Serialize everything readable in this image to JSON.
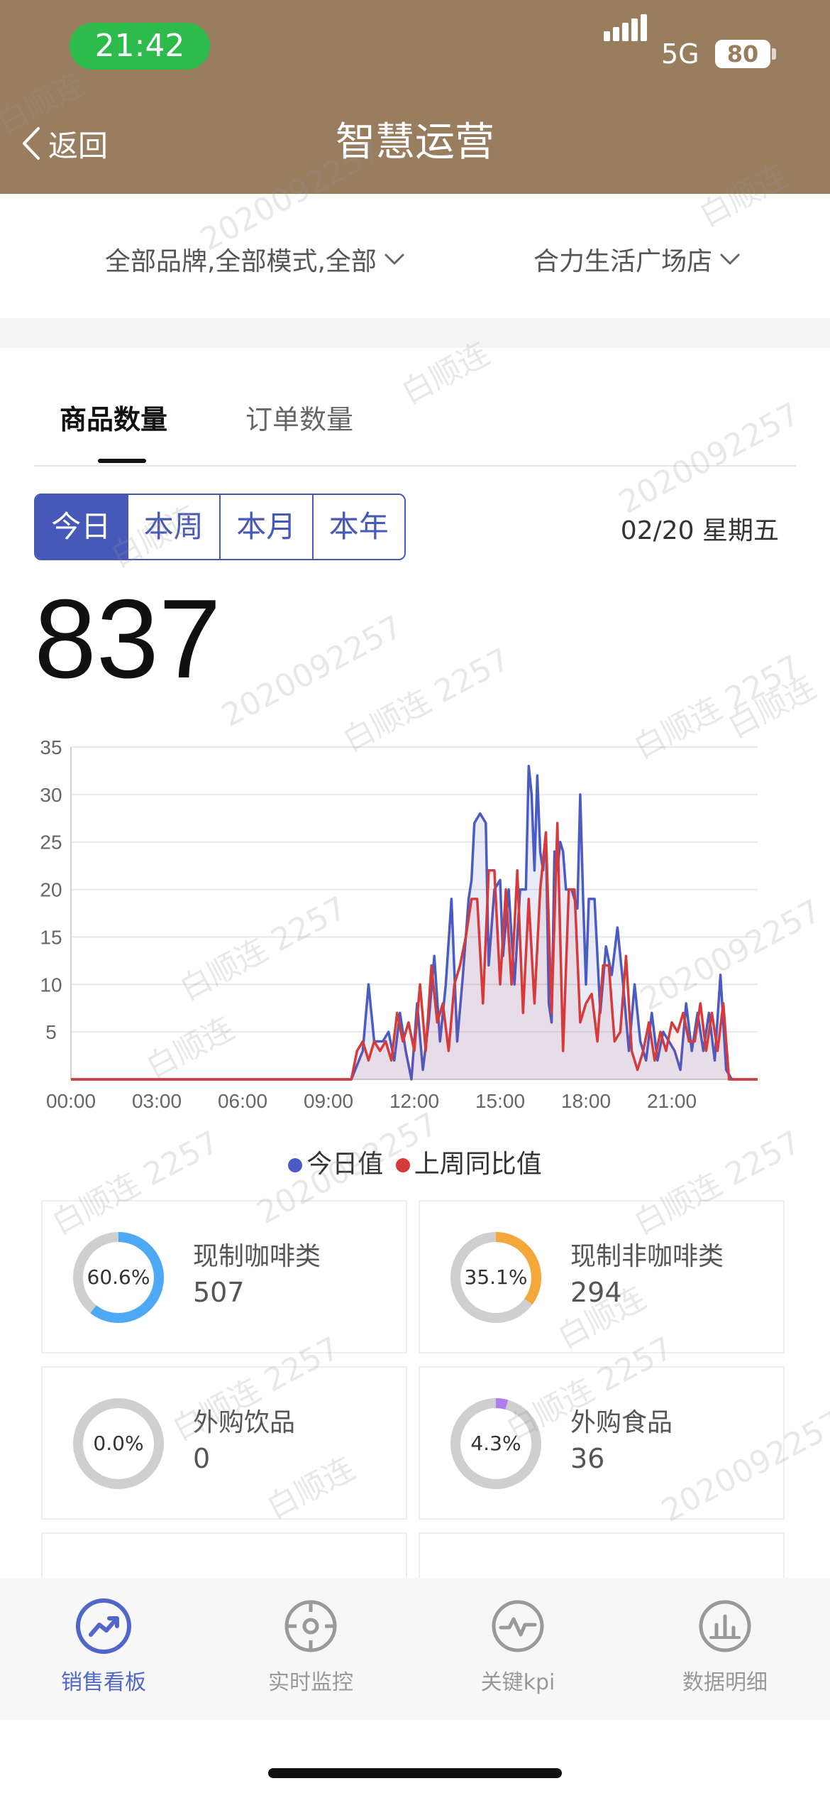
{
  "status_bar": {
    "time": "21:42",
    "network": "5G",
    "battery": "80"
  },
  "nav": {
    "back_label": "返回",
    "title": "智慧运营"
  },
  "filters": {
    "brand": "全部品牌,全部模式,全部",
    "store": "合力生活广场店"
  },
  "tabs": [
    {
      "label": "商品数量",
      "active": true
    },
    {
      "label": "订单数量",
      "active": false
    }
  ],
  "periods": [
    "今日",
    "本周",
    "本月",
    "本年"
  ],
  "active_period": "今日",
  "date": "02/20 星期五",
  "total": "837",
  "chart_data": {
    "type": "line",
    "title": "",
    "xlabel": "",
    "ylabel": "",
    "x_tick_labels": [
      "00:00",
      "03:00",
      "06:00",
      "09:00",
      "12:00",
      "15:00",
      "18:00",
      "21:00"
    ],
    "y_tick_labels": [
      "5",
      "10",
      "15",
      "20",
      "25",
      "30",
      "35"
    ],
    "xlim": [
      0,
      24
    ],
    "ylim": [
      0,
      35
    ],
    "grid": true,
    "legend_position": "bottom",
    "series": [
      {
        "name": "今日值",
        "color": "#4a5bc4",
        "points": [
          [
            0,
            0
          ],
          [
            9.8,
            0
          ],
          [
            10.2,
            3
          ],
          [
            10.4,
            10
          ],
          [
            10.6,
            4
          ],
          [
            10.9,
            4
          ],
          [
            11.1,
            5
          ],
          [
            11.3,
            2
          ],
          [
            11.5,
            7
          ],
          [
            11.7,
            3
          ],
          [
            11.9,
            0
          ],
          [
            12.1,
            8
          ],
          [
            12.3,
            1
          ],
          [
            12.5,
            6
          ],
          [
            12.7,
            13
          ],
          [
            12.9,
            4
          ],
          [
            13.1,
            10
          ],
          [
            13.3,
            19
          ],
          [
            13.5,
            4
          ],
          [
            13.7,
            11
          ],
          [
            13.9,
            19
          ],
          [
            14.0,
            21
          ],
          [
            14.1,
            27
          ],
          [
            14.3,
            28
          ],
          [
            14.5,
            27
          ],
          [
            14.6,
            12
          ],
          [
            14.8,
            20
          ],
          [
            15.0,
            21
          ],
          [
            15.1,
            13
          ],
          [
            15.3,
            20
          ],
          [
            15.5,
            10
          ],
          [
            15.7,
            20
          ],
          [
            15.9,
            20
          ],
          [
            16.0,
            33
          ],
          [
            16.1,
            30
          ],
          [
            16.2,
            22
          ],
          [
            16.3,
            32
          ],
          [
            16.4,
            24
          ],
          [
            16.5,
            22
          ],
          [
            16.6,
            26
          ],
          [
            16.7,
            8
          ],
          [
            16.8,
            6
          ],
          [
            16.9,
            24
          ],
          [
            17.0,
            22
          ],
          [
            17.1,
            25
          ],
          [
            17.2,
            24
          ],
          [
            17.3,
            20
          ],
          [
            17.5,
            20
          ],
          [
            17.7,
            18
          ],
          [
            17.8,
            30
          ],
          [
            17.9,
            19
          ],
          [
            18.0,
            10
          ],
          [
            18.1,
            19
          ],
          [
            18.3,
            19
          ],
          [
            18.5,
            7
          ],
          [
            18.7,
            14
          ],
          [
            18.9,
            11
          ],
          [
            19.1,
            16
          ],
          [
            19.3,
            10
          ],
          [
            19.5,
            3
          ],
          [
            19.7,
            10
          ],
          [
            19.9,
            4
          ],
          [
            20.1,
            2
          ],
          [
            20.3,
            7
          ],
          [
            20.5,
            2
          ],
          [
            20.7,
            5
          ],
          [
            20.9,
            4
          ],
          [
            21.1,
            3
          ],
          [
            21.3,
            1
          ],
          [
            21.5,
            8
          ],
          [
            21.7,
            3
          ],
          [
            21.9,
            7
          ],
          [
            22.1,
            3
          ],
          [
            22.3,
            7
          ],
          [
            22.5,
            2
          ],
          [
            22.7,
            11
          ],
          [
            22.9,
            1
          ],
          [
            23.1,
            0
          ],
          [
            24,
            0
          ]
        ]
      },
      {
        "name": "上周同比值",
        "color": "#d63a3a",
        "points": [
          [
            0,
            0
          ],
          [
            9.8,
            0
          ],
          [
            10.0,
            3
          ],
          [
            10.2,
            4
          ],
          [
            10.4,
            2
          ],
          [
            10.6,
            4
          ],
          [
            10.8,
            3
          ],
          [
            11.0,
            4
          ],
          [
            11.2,
            2
          ],
          [
            11.4,
            7
          ],
          [
            11.6,
            4
          ],
          [
            11.8,
            6
          ],
          [
            12.0,
            3
          ],
          [
            12.2,
            10
          ],
          [
            12.4,
            3
          ],
          [
            12.6,
            12
          ],
          [
            12.8,
            6
          ],
          [
            13.0,
            8
          ],
          [
            13.2,
            3
          ],
          [
            13.4,
            10
          ],
          [
            13.6,
            12
          ],
          [
            13.8,
            15
          ],
          [
            14.0,
            19
          ],
          [
            14.2,
            19
          ],
          [
            14.4,
            8
          ],
          [
            14.6,
            22
          ],
          [
            14.8,
            22
          ],
          [
            15.0,
            10
          ],
          [
            15.2,
            20
          ],
          [
            15.4,
            10
          ],
          [
            15.6,
            22
          ],
          [
            15.8,
            7
          ],
          [
            16.0,
            19
          ],
          [
            16.2,
            8
          ],
          [
            16.4,
            20
          ],
          [
            16.6,
            26
          ],
          [
            16.8,
            7
          ],
          [
            17.0,
            27
          ],
          [
            17.2,
            3
          ],
          [
            17.4,
            20
          ],
          [
            17.6,
            20
          ],
          [
            17.8,
            6
          ],
          [
            18.0,
            8
          ],
          [
            18.2,
            9
          ],
          [
            18.4,
            4
          ],
          [
            18.6,
            12
          ],
          [
            18.8,
            12
          ],
          [
            19.0,
            4
          ],
          [
            19.2,
            5
          ],
          [
            19.4,
            13
          ],
          [
            19.6,
            3
          ],
          [
            19.8,
            1
          ],
          [
            20.0,
            3
          ],
          [
            20.2,
            6
          ],
          [
            20.4,
            2
          ],
          [
            20.6,
            5
          ],
          [
            20.8,
            3
          ],
          [
            21.0,
            6
          ],
          [
            21.2,
            5
          ],
          [
            21.4,
            7
          ],
          [
            21.6,
            4
          ],
          [
            21.8,
            4
          ],
          [
            22.0,
            8
          ],
          [
            22.2,
            3
          ],
          [
            22.4,
            7
          ],
          [
            22.6,
            3
          ],
          [
            22.8,
            8
          ],
          [
            23.0,
            0
          ],
          [
            24,
            0
          ]
        ]
      }
    ]
  },
  "categories": [
    {
      "name": "现制咖啡类",
      "value": "507",
      "pct_label": "60.6%",
      "fraction": 0.606,
      "color": "#4da9f5"
    },
    {
      "name": "现制非咖啡类",
      "value": "294",
      "pct_label": "35.1%",
      "fraction": 0.351,
      "color": "#f5a83a"
    },
    {
      "name": "外购饮品",
      "value": "0",
      "pct_label": "0.0%",
      "fraction": 0.0,
      "color": "#4da9f5"
    },
    {
      "name": "外购食品",
      "value": "36",
      "pct_label": "4.3%",
      "fraction": 0.043,
      "color": "#b07cf0"
    }
  ],
  "tabbar": [
    {
      "label": "销售看板",
      "icon": "trend-up-icon",
      "active": true
    },
    {
      "label": "实时监控",
      "icon": "crosshair-icon",
      "active": false
    },
    {
      "label": "关键kpi",
      "icon": "pulse-icon",
      "active": false
    },
    {
      "label": "数据明细",
      "icon": "bar-chart-icon",
      "active": false
    }
  ],
  "watermark": {
    "name": "白顺连",
    "id": "2020092257",
    "name_id": "白顺连 2257"
  },
  "colors": {
    "header": "#987d5f",
    "accent": "#4658b8",
    "status_pill": "#2dbb4b"
  }
}
